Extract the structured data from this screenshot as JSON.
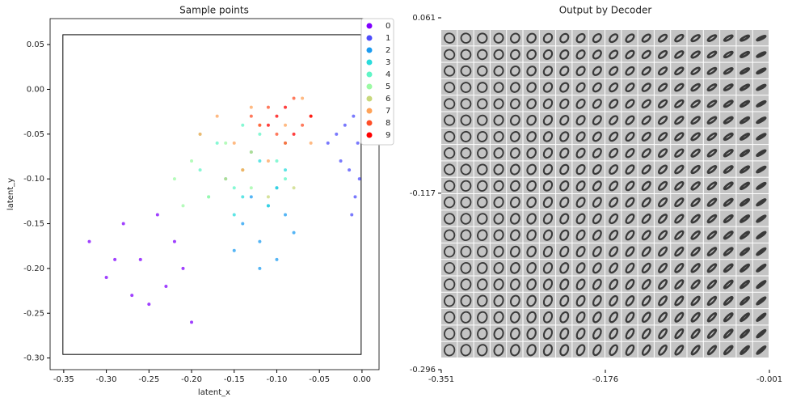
{
  "chart_data": [
    {
      "type": "scatter",
      "title": "Sample points",
      "xlabel": "latent_x",
      "ylabel": "latent_y",
      "xlim": [
        -0.366,
        0.02
      ],
      "ylim": [
        -0.313,
        0.079
      ],
      "xticks": [
        -0.35,
        {
          "value": -0.3,
          "label": "-0.30"
        },
        -0.25,
        {
          "value": -0.2,
          "label": "-0.20"
        },
        -0.15,
        {
          "value": -0.1,
          "label": "-0.10"
        },
        -0.05,
        {
          "value": 0,
          "label": "0.00"
        }
      ],
      "yticks": [
        0.05,
        {
          "value": 0,
          "label": "0.00"
        },
        -0.05,
        {
          "value": -0.1,
          "label": "-0.10"
        },
        -0.15,
        {
          "value": -0.2,
          "label": "-0.20"
        },
        -0.25,
        {
          "value": -0.3,
          "label": "-0.30"
        }
      ],
      "legend": "upper right",
      "series": [
        {
          "name": "0",
          "color": "#8000ff",
          "x": [
            -0.32,
            -0.3,
            -0.28,
            -0.26,
            -0.25,
            -0.23,
            -0.22,
            -0.2,
            -0.27,
            -0.24,
            -0.29,
            -0.21
          ],
          "y": [
            -0.17,
            -0.21,
            -0.15,
            -0.19,
            -0.24,
            -0.22,
            -0.17,
            -0.26,
            -0.23,
            -0.14,
            -0.19,
            -0.2
          ]
        },
        {
          "name": "1",
          "color": "#4e4dfc",
          "x": [
            -0.01,
            -0.005,
            -0.02,
            -0.03,
            -0.015,
            -0.008,
            -0.04,
            -0.012,
            -0.025,
            -0.003
          ],
          "y": [
            -0.03,
            -0.06,
            -0.04,
            -0.05,
            -0.09,
            -0.12,
            -0.06,
            -0.14,
            -0.08,
            -0.1
          ]
        },
        {
          "name": "2",
          "color": "#1c9cf1",
          "x": [
            -0.14,
            -0.12,
            -0.1,
            -0.09,
            -0.13,
            -0.11,
            -0.08,
            -0.15,
            -0.1,
            -0.12
          ],
          "y": [
            -0.15,
            -0.17,
            -0.19,
            -0.14,
            -0.12,
            -0.13,
            -0.16,
            -0.18,
            -0.11,
            -0.2
          ]
        },
        {
          "name": "3",
          "color": "#2adcdc",
          "x": [
            -0.16,
            -0.14,
            -0.12,
            -0.1,
            -0.15,
            -0.13,
            -0.09,
            -0.11
          ],
          "y": [
            -0.1,
            -0.12,
            -0.08,
            -0.11,
            -0.14,
            -0.07,
            -0.09,
            -0.13
          ]
        },
        {
          "name": "4",
          "color": "#5ff5c6",
          "x": [
            -0.19,
            -0.17,
            -0.15,
            -0.12,
            -0.1,
            -0.18,
            -0.14,
            -0.09
          ],
          "y": [
            -0.09,
            -0.06,
            -0.11,
            -0.05,
            -0.08,
            -0.12,
            -0.04,
            -0.1
          ]
        },
        {
          "name": "5",
          "color": "#9cfaa4",
          "x": [
            -0.22,
            -0.2,
            -0.18,
            -0.16,
            -0.21,
            -0.14,
            -0.19,
            -0.13
          ],
          "y": [
            -0.1,
            -0.08,
            -0.12,
            -0.06,
            -0.13,
            -0.09,
            -0.05,
            -0.11
          ]
        },
        {
          "name": "6",
          "color": "#c8d87c",
          "x": [
            -0.16,
            -0.13,
            -0.11,
            -0.09,
            -0.14,
            -0.08
          ],
          "y": [
            -0.1,
            -0.07,
            -0.12,
            -0.06,
            -0.09,
            -0.11
          ]
        },
        {
          "name": "7",
          "color": "#ffa359",
          "x": [
            -0.19,
            -0.17,
            -0.15,
            -0.13,
            -0.11,
            -0.09,
            -0.07,
            -0.14,
            -0.12,
            -0.06
          ],
          "y": [
            -0.05,
            -0.03,
            -0.06,
            -0.02,
            -0.08,
            -0.04,
            -0.01,
            -0.09,
            -0.04,
            -0.06
          ]
        },
        {
          "name": "8",
          "color": "#ff4f28",
          "x": [
            -0.13,
            -0.11,
            -0.1,
            -0.08,
            -0.07,
            -0.09,
            -0.12,
            -0.06
          ],
          "y": [
            -0.03,
            -0.02,
            -0.05,
            -0.01,
            -0.04,
            -0.06,
            -0.04,
            -0.03
          ]
        },
        {
          "name": "9",
          "color": "#ff0000",
          "x": [
            -0.11,
            -0.09,
            -0.08,
            -0.06,
            -0.1
          ],
          "y": [
            -0.04,
            -0.02,
            -0.05,
            -0.03,
            -0.03
          ]
        }
      ]
    },
    {
      "type": "image_grid",
      "title": "Output by Decoder",
      "xlim": [
        -0.351,
        -0.001
      ],
      "ylim": [
        -0.296,
        0.061
      ],
      "xticks": [
        -0.351,
        -0.176,
        -0.001
      ],
      "yticks": [
        -0.296,
        -0.117,
        0.061
      ]
    }
  ]
}
